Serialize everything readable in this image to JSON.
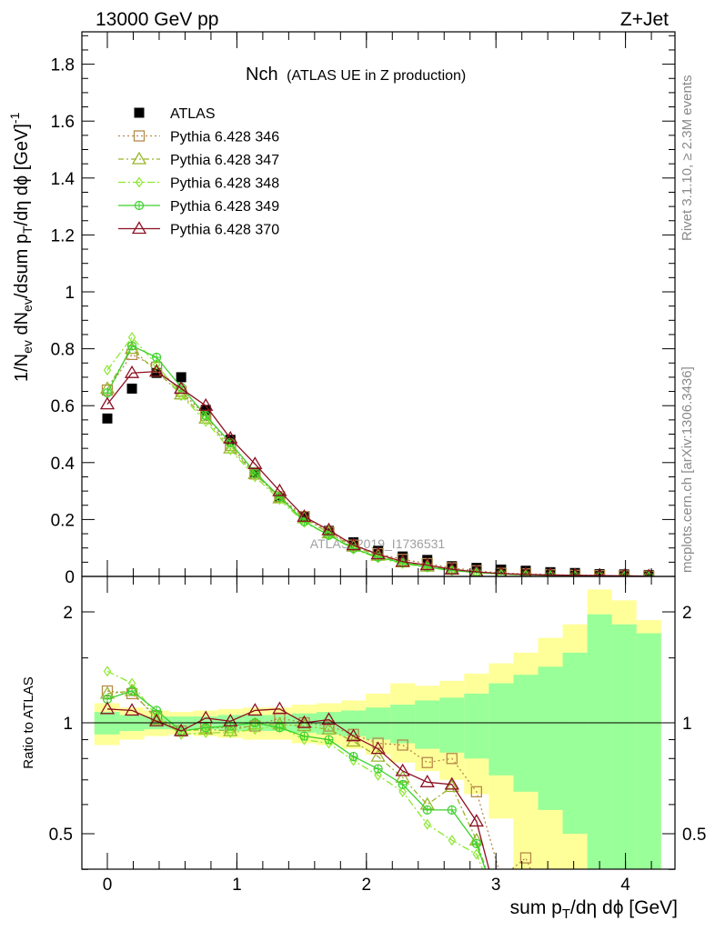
{
  "header": {
    "left": "13000 GeV pp",
    "right": "Z+Jet"
  },
  "side_labels": {
    "rivet": "Rivet 3.1.10, ≥ 2.3M events",
    "mcplots": "mcplots.cern.ch [arXiv:1306.3436]"
  },
  "chart_data": [
    {
      "type": "line",
      "panel": "main",
      "title_main": "Nch",
      "title_sub": "(ATLAS UE in Z production)",
      "ylabel": "1/N_ev dN_ev/dsum p_T/dη dϕ [GeV]^-1",
      "xlim": [
        -0.2,
        4.35
      ],
      "ylim": [
        0,
        1.92
      ],
      "yticks": [
        "0",
        "0.2",
        "0.4",
        "0.6",
        "0.8",
        "1",
        "1.2",
        "1.4",
        "1.6",
        "1.8"
      ],
      "watermark": "ATLAS_2019_I1736531",
      "legend_position": "top-left",
      "x": [
        0.0,
        0.19,
        0.38,
        0.57,
        0.76,
        0.95,
        1.14,
        1.33,
        1.52,
        1.71,
        1.9,
        2.09,
        2.28,
        2.47,
        2.66,
        2.85,
        3.04,
        3.23,
        3.42,
        3.61,
        3.8,
        3.99,
        4.18
      ],
      "series": [
        {
          "name": "ATLAS",
          "color": "#000000",
          "marker": "filled-square",
          "values": [
            0.555,
            0.66,
            0.715,
            0.7,
            0.585,
            0.48,
            0.365,
            0.275,
            0.21,
            0.16,
            0.12,
            0.09,
            0.07,
            0.058,
            0.036,
            0.03,
            0.024,
            0.02,
            0.015,
            0.012,
            0.008,
            0.007,
            0.005
          ]
        },
        {
          "name": "Pythia 6.428 346",
          "color": "#b5894a",
          "marker": "open-square",
          "dash": "2,3",
          "values": [
            0.655,
            0.78,
            0.735,
            0.65,
            0.565,
            0.46,
            0.36,
            0.28,
            0.21,
            0.155,
            0.11,
            0.08,
            0.06,
            0.045,
            0.03,
            0.02,
            0.011,
            0.009,
            0.006,
            0.004,
            0.003,
            0.002,
            0.001
          ]
        },
        {
          "name": "Pythia 6.428 347",
          "color": "#99b52c",
          "marker": "open-triangle",
          "dash": "6,3,2,3",
          "values": [
            0.66,
            0.8,
            0.72,
            0.64,
            0.555,
            0.45,
            0.36,
            0.275,
            0.205,
            0.152,
            0.105,
            0.073,
            0.05,
            0.035,
            0.024,
            0.015,
            0.009,
            0.007,
            0.005,
            0.004,
            0.003,
            0.002,
            0.001
          ]
        },
        {
          "name": "Pythia 6.428 348",
          "color": "#8ce831",
          "marker": "open-diamond",
          "dash": "8,3,2,3",
          "values": [
            0.725,
            0.84,
            0.745,
            0.635,
            0.545,
            0.445,
            0.35,
            0.27,
            0.19,
            0.145,
            0.095,
            0.065,
            0.045,
            0.032,
            0.02,
            0.013,
            0.008,
            0.005,
            0.004,
            0.003,
            0.002,
            0.001,
            0.001
          ]
        },
        {
          "name": "Pythia 6.428 349",
          "color": "#3bd12a",
          "marker": "open-circle-cross",
          "dash": "",
          "values": [
            0.645,
            0.81,
            0.77,
            0.665,
            0.565,
            0.47,
            0.365,
            0.28,
            0.193,
            0.145,
            0.098,
            0.068,
            0.048,
            0.033,
            0.021,
            0.014,
            0.009,
            0.006,
            0.004,
            0.003,
            0.002,
            0.001,
            0.001
          ]
        },
        {
          "name": "Pythia 6.428 370",
          "color": "#8c1022",
          "marker": "open-triangle",
          "dash": "",
          "values": [
            0.605,
            0.715,
            0.72,
            0.66,
            0.6,
            0.485,
            0.395,
            0.3,
            0.21,
            0.163,
            0.11,
            0.078,
            0.052,
            0.04,
            0.025,
            0.016,
            0.01,
            0.007,
            0.005,
            0.004,
            0.003,
            0.002,
            0.001
          ]
        }
      ]
    },
    {
      "type": "line",
      "panel": "ratio",
      "ylabel": "Ratio to ATLAS",
      "xlabel": "sum p_T/dη dϕ [GeV]",
      "xlim": [
        -0.2,
        4.35
      ],
      "ylim": [
        0.35,
        2.3
      ],
      "yticks": [
        "0.5",
        "1",
        "2"
      ],
      "xticks": [
        "0",
        "1",
        "2",
        "3",
        "4"
      ],
      "band_edges": [
        -0.1,
        0.095,
        0.285,
        0.475,
        0.665,
        0.855,
        1.045,
        1.235,
        1.425,
        1.615,
        1.805,
        1.995,
        2.185,
        2.375,
        2.565,
        2.755,
        2.945,
        3.135,
        3.325,
        3.515,
        3.705,
        3.895,
        4.085,
        4.275
      ],
      "stat_band_lo": [
        0.93,
        0.95,
        0.96,
        0.96,
        0.96,
        0.95,
        0.95,
        0.95,
        0.94,
        0.93,
        0.92,
        0.9,
        0.88,
        0.85,
        0.83,
        0.8,
        0.72,
        0.65,
        0.58,
        0.5,
        0.4,
        0.35,
        0.35
      ],
      "stat_band_hi": [
        1.07,
        1.05,
        1.04,
        1.04,
        1.04,
        1.05,
        1.05,
        1.05,
        1.06,
        1.07,
        1.08,
        1.1,
        1.12,
        1.15,
        1.17,
        1.2,
        1.28,
        1.35,
        1.42,
        1.55,
        1.97,
        1.85,
        1.75
      ],
      "total_band_lo": [
        0.87,
        0.9,
        0.92,
        0.93,
        0.92,
        0.91,
        0.9,
        0.9,
        0.88,
        0.87,
        0.85,
        0.82,
        0.78,
        0.74,
        0.7,
        0.64,
        0.55,
        0.35,
        0.35,
        0.35,
        0.35,
        0.35,
        0.35
      ],
      "total_band_hi": [
        1.13,
        1.1,
        1.08,
        1.07,
        1.08,
        1.09,
        1.1,
        1.1,
        1.12,
        1.13,
        1.15,
        1.2,
        1.28,
        1.26,
        1.3,
        1.36,
        1.45,
        1.55,
        1.7,
        1.85,
        2.3,
        2.15,
        1.9
      ],
      "x": [
        0.0,
        0.19,
        0.38,
        0.57,
        0.76,
        0.95,
        1.14,
        1.33,
        1.52,
        1.71,
        1.9,
        2.09,
        2.28,
        2.47,
        2.66,
        2.85,
        3.04,
        3.23,
        3.42,
        3.61,
        3.8,
        3.99,
        4.18
      ],
      "series": [
        {
          "name": "Pythia 6.428 346",
          "color": "#b5894a",
          "marker": "open-square",
          "dash": "2,3",
          "values": [
            1.22,
            1.2,
            1.04,
            0.95,
            0.97,
            0.97,
            0.98,
            1.03,
            1.0,
            0.98,
            0.93,
            0.88,
            0.87,
            0.78,
            0.8,
            0.65,
            0.38,
            0.43,
            0.3,
            0.3,
            0.3,
            0.3,
            0.3
          ]
        },
        {
          "name": "Pythia 6.428 347",
          "color": "#99b52c",
          "marker": "open-triangle",
          "dash": "6,3,2,3",
          "values": [
            1.2,
            1.22,
            1.02,
            0.95,
            0.96,
            0.95,
            0.99,
            0.99,
            0.98,
            0.96,
            0.89,
            0.81,
            0.71,
            0.6,
            0.67,
            0.48,
            0.3,
            0.3,
            0.3,
            0.3,
            0.36,
            0.3,
            0.3
          ]
        },
        {
          "name": "Pythia 6.428 348",
          "color": "#8ce831",
          "marker": "open-diamond",
          "dash": "8,3,2,3",
          "values": [
            1.38,
            1.28,
            1.04,
            0.93,
            0.94,
            0.94,
            0.96,
            0.98,
            0.9,
            0.88,
            0.79,
            0.72,
            0.65,
            0.53,
            0.48,
            0.44,
            0.3,
            0.3,
            0.3,
            0.3,
            0.3,
            0.3,
            0.3
          ]
        },
        {
          "name": "Pythia 6.428 349",
          "color": "#3bd12a",
          "marker": "open-circle-cross",
          "dash": "",
          "values": [
            1.16,
            1.22,
            1.08,
            0.95,
            0.97,
            0.98,
            1.0,
            0.97,
            0.92,
            0.9,
            0.81,
            0.75,
            0.68,
            0.58,
            0.58,
            0.47,
            0.3,
            0.3,
            0.3,
            0.3,
            0.3,
            0.3,
            0.3
          ]
        },
        {
          "name": "Pythia 6.428 370",
          "color": "#8c1022",
          "marker": "open-triangle",
          "dash": "",
          "values": [
            1.09,
            1.08,
            1.01,
            0.95,
            1.03,
            1.01,
            1.08,
            1.09,
            1.0,
            1.02,
            0.92,
            0.85,
            0.74,
            0.69,
            0.68,
            0.54,
            0.3,
            0.3,
            0.3,
            0.3,
            0.3,
            0.3,
            0.3
          ]
        }
      ]
    }
  ]
}
